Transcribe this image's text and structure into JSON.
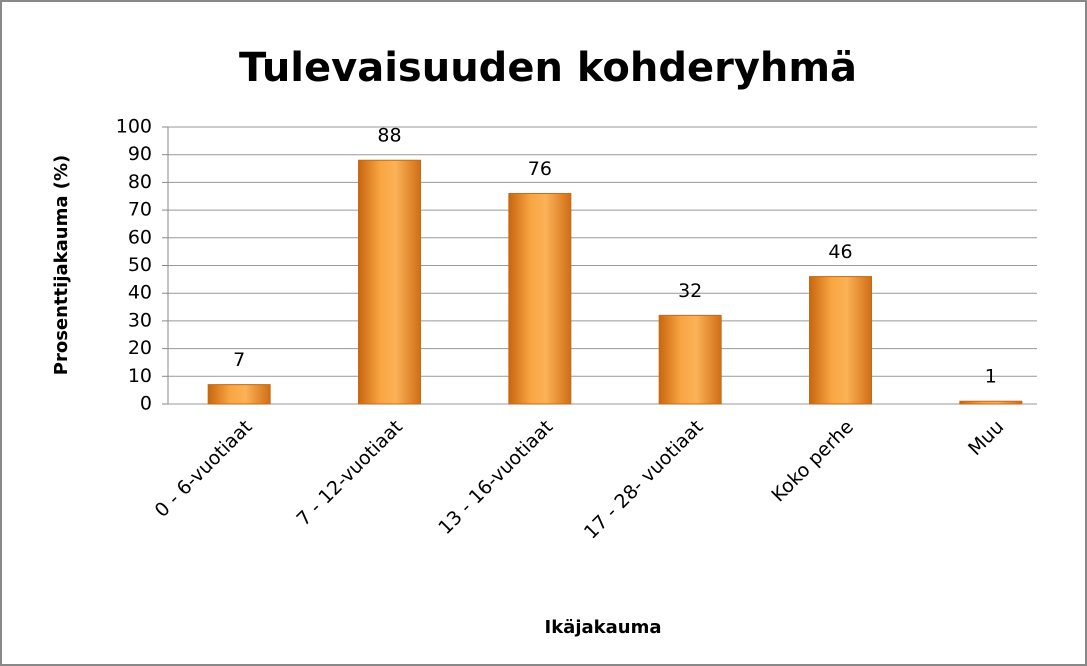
{
  "chart_data": {
    "type": "bar",
    "title": "Tulevaisuuden kohderyhmä",
    "xlabel": "Ikäjakauma",
    "ylabel": "Prosenttijakauma (%)",
    "categories": [
      "0 - 6-vuotiaat",
      "7 - 12-vuotiaat",
      "13 - 16-vuotiaat",
      "17 - 28- vuotiaat",
      "Koko perhe",
      "Muu"
    ],
    "values": [
      7,
      88,
      76,
      32,
      46,
      1
    ],
    "color": "#f59a2e",
    "ylim": [
      0,
      100
    ],
    "yticks": [
      0,
      10,
      20,
      30,
      40,
      50,
      60,
      70,
      80,
      90,
      100
    ],
    "grid": true
  }
}
